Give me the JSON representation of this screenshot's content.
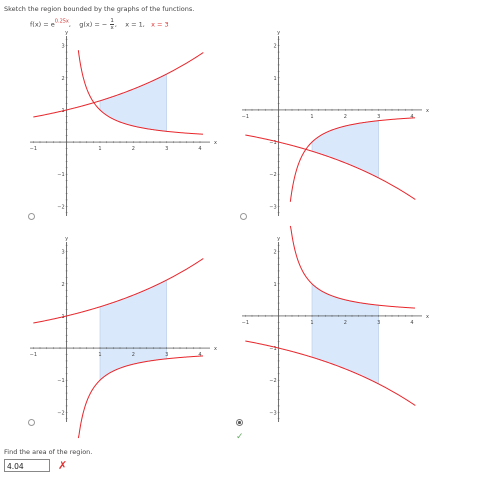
{
  "question": "Sketch the region bounded by the graphs of the functions.",
  "functions": {
    "f_label": "f(x) = e",
    "f_exponent": "0.25x",
    "g_label": "g(x) = −",
    "g_num": "1",
    "g_den": "x",
    "line1": "x = 1,",
    "line2": "x = 3"
  },
  "graphs": [
    {
      "option": "a",
      "y_ticks": [
        "3",
        "2",
        "1",
        "−1",
        "−2"
      ],
      "x_ticks": [
        "−1",
        "1",
        "2",
        "3",
        "4"
      ],
      "x_axis_label": "x",
      "y_axis_label": "y"
    },
    {
      "option": "b",
      "y_ticks": [
        "2",
        "1",
        "−1",
        "−2",
        "−3"
      ],
      "x_ticks": [
        "−1",
        "1",
        "2",
        "3",
        "4"
      ],
      "x_axis_label": "x",
      "y_axis_label": "y"
    },
    {
      "option": "c",
      "y_ticks": [
        "3",
        "2",
        "1",
        "−1",
        "−2"
      ],
      "x_ticks": [
        "−1",
        "1",
        "2",
        "3",
        "4"
      ],
      "x_axis_label": "x",
      "y_axis_label": "y"
    },
    {
      "option": "d",
      "y_ticks": [
        "2",
        "1",
        "−1",
        "−2",
        "−3"
      ],
      "x_ticks": [
        "−1",
        "1",
        "2",
        "3",
        "4"
      ],
      "x_axis_label": "x",
      "y_axis_label": "y"
    }
  ],
  "selected_option": "d",
  "area_prompt": "Find the area of the region.",
  "area_answer": "4.04",
  "status": "incorrect",
  "colors": {
    "curve": "#e8262b",
    "region": "#d9e9fb",
    "region_edge": "#b8cde6"
  }
}
